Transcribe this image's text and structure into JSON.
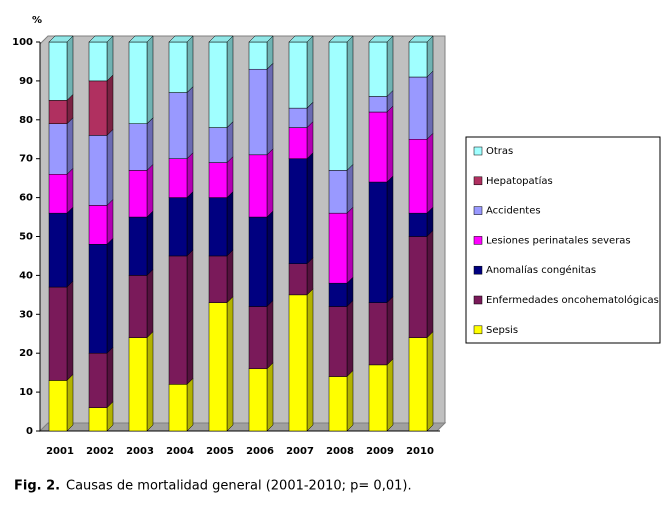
{
  "chart_data": {
    "type": "stacked_bar_3d",
    "y_label": "%",
    "categories": [
      "2001",
      "2002",
      "2003",
      "2004",
      "2005",
      "2006",
      "2007",
      "2008",
      "2009",
      "2010"
    ],
    "series": [
      {
        "name": "Sepsis",
        "color": "#ffff00",
        "values": [
          13,
          6,
          24,
          12,
          33,
          16,
          35,
          14,
          17,
          24
        ]
      },
      {
        "name": "Enfermedades oncohematológicas",
        "color": "#7a1a5a",
        "values": [
          24,
          14,
          16,
          33,
          12,
          16,
          8,
          18,
          16,
          26
        ]
      },
      {
        "name": "Anomalías congénitas",
        "color": "#000080",
        "values": [
          19,
          28,
          15,
          15,
          15,
          23,
          27,
          6,
          31,
          6
        ]
      },
      {
        "name": "Lesiones perinatales severas",
        "color": "#ff00ff",
        "values": [
          10,
          10,
          12,
          10,
          9,
          16,
          8,
          18,
          18,
          19
        ]
      },
      {
        "name": "Accidentes",
        "color": "#9999ff",
        "values": [
          13,
          18,
          12,
          17,
          9,
          22,
          5,
          11,
          4,
          16
        ]
      },
      {
        "name": "Hepatopatías",
        "color": "#b03060",
        "values": [
          6,
          14,
          0,
          0,
          0,
          0,
          0,
          0,
          0,
          0
        ]
      },
      {
        "name": "Otras",
        "color": "#a0ffff",
        "values": [
          15,
          10,
          21,
          13,
          22,
          7,
          17,
          33,
          14,
          9
        ]
      }
    ],
    "ylim": [
      0,
      100
    ],
    "yticks": [
      0,
      10,
      20,
      30,
      40,
      50,
      60,
      70,
      80,
      90,
      100
    ],
    "grid": false,
    "legend": "right",
    "figure_label": "Fig. 2.",
    "caption": "Causas de mortalidad general (2001-2010; p= 0,01)."
  }
}
